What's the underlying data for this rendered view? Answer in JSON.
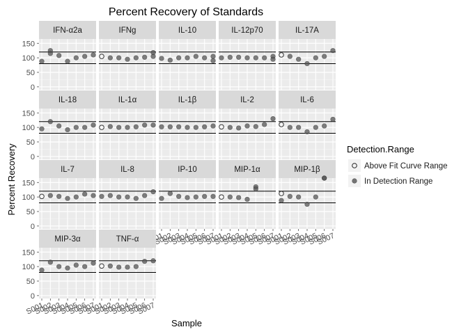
{
  "chart_data": {
    "type": "scatter",
    "title": "Percent Recovery of Standards",
    "xlabel": "Sample",
    "ylabel": "Percent Recovery",
    "ylim": [
      -10,
      165
    ],
    "yticks": [
      0,
      50,
      100,
      150
    ],
    "hlines": [
      80,
      120
    ],
    "grid": true,
    "x_categories": [
      "S001",
      "S002",
      "S003",
      "S004",
      "S005",
      "S006",
      "S007"
    ],
    "facet_columns": 5,
    "legend": {
      "title": "Detection.Range",
      "position": "right",
      "entries": [
        {
          "label": "Above Fit Curve Range",
          "style": "open"
        },
        {
          "label": "In Detection Range",
          "style": "filled"
        }
      ]
    },
    "colors": {
      "filled": "#555555",
      "open_stroke": "#222222",
      "strip": "#d9d9d9",
      "panel": "#ebebeb",
      "hline": "#000000"
    },
    "panels": [
      {
        "name": "IFN-α2a",
        "points": [
          [
            1,
            88,
            0
          ],
          [
            2,
            125,
            0
          ],
          [
            2,
            115,
            0
          ],
          [
            3,
            108,
            0
          ],
          [
            4,
            88,
            0
          ],
          [
            5,
            100,
            0
          ],
          [
            6,
            105,
            0
          ],
          [
            7,
            110,
            0
          ]
        ]
      },
      {
        "name": "IFNg",
        "points": [
          [
            1,
            105,
            1
          ],
          [
            2,
            100,
            0
          ],
          [
            3,
            100,
            0
          ],
          [
            4,
            95,
            0
          ],
          [
            5,
            100,
            0
          ],
          [
            6,
            102,
            0
          ],
          [
            7,
            118,
            0
          ],
          [
            7,
            105,
            0
          ]
        ]
      },
      {
        "name": "IL-10",
        "points": [
          [
            1,
            98,
            0
          ],
          [
            2,
            92,
            0
          ],
          [
            3,
            100,
            0
          ],
          [
            4,
            100,
            0
          ],
          [
            5,
            105,
            0
          ],
          [
            6,
            100,
            0
          ],
          [
            7,
            105,
            0
          ],
          [
            7,
            90,
            0
          ]
        ]
      },
      {
        "name": "IL-12p70",
        "points": [
          [
            1,
            100,
            0
          ],
          [
            2,
            102,
            0
          ],
          [
            3,
            102,
            0
          ],
          [
            4,
            100,
            0
          ],
          [
            5,
            100,
            0
          ],
          [
            6,
            100,
            0
          ],
          [
            7,
            105,
            0
          ],
          [
            7,
            95,
            0
          ]
        ]
      },
      {
        "name": "IL-17A",
        "points": [
          [
            1,
            110,
            1
          ],
          [
            2,
            105,
            0
          ],
          [
            3,
            95,
            0
          ],
          [
            4,
            80,
            0
          ],
          [
            5,
            100,
            0
          ],
          [
            6,
            105,
            0
          ],
          [
            7,
            125,
            0
          ]
        ]
      },
      {
        "name": "IL-18",
        "points": [
          [
            1,
            95,
            0
          ],
          [
            2,
            120,
            0
          ],
          [
            3,
            105,
            0
          ],
          [
            4,
            92,
            0
          ],
          [
            5,
            100,
            0
          ],
          [
            6,
            100,
            0
          ],
          [
            7,
            108,
            0
          ]
        ]
      },
      {
        "name": "IL-1α",
        "points": [
          [
            1,
            100,
            1
          ],
          [
            2,
            103,
            0
          ],
          [
            3,
            100,
            0
          ],
          [
            4,
            100,
            0
          ],
          [
            5,
            102,
            0
          ],
          [
            6,
            108,
            0
          ],
          [
            7,
            108,
            0
          ]
        ]
      },
      {
        "name": "IL-1β",
        "points": [
          [
            1,
            102,
            0
          ],
          [
            2,
            102,
            0
          ],
          [
            3,
            102,
            0
          ],
          [
            4,
            100,
            0
          ],
          [
            5,
            100,
            0
          ],
          [
            6,
            102,
            0
          ],
          [
            7,
            105,
            0
          ]
        ]
      },
      {
        "name": "IL-2",
        "points": [
          [
            1,
            102,
            1
          ],
          [
            2,
            100,
            0
          ],
          [
            3,
            98,
            0
          ],
          [
            4,
            105,
            0
          ],
          [
            5,
            103,
            0
          ],
          [
            6,
            110,
            0
          ],
          [
            7,
            130,
            0
          ]
        ]
      },
      {
        "name": "IL-6",
        "points": [
          [
            1,
            110,
            1
          ],
          [
            2,
            100,
            0
          ],
          [
            3,
            100,
            0
          ],
          [
            4,
            85,
            0
          ],
          [
            5,
            100,
            0
          ],
          [
            6,
            105,
            0
          ],
          [
            7,
            128,
            0
          ]
        ]
      },
      {
        "name": "IL-7",
        "points": [
          [
            1,
            102,
            1
          ],
          [
            2,
            105,
            0
          ],
          [
            3,
            102,
            0
          ],
          [
            4,
            95,
            0
          ],
          [
            5,
            100,
            0
          ],
          [
            6,
            110,
            0
          ],
          [
            7,
            105,
            0
          ]
        ]
      },
      {
        "name": "IL-8",
        "points": [
          [
            1,
            102,
            0
          ],
          [
            2,
            105,
            0
          ],
          [
            3,
            100,
            0
          ],
          [
            4,
            100,
            0
          ],
          [
            5,
            95,
            0
          ],
          [
            6,
            105,
            0
          ],
          [
            7,
            118,
            0
          ]
        ]
      },
      {
        "name": "IP-10",
        "points": [
          [
            1,
            95,
            0
          ],
          [
            2,
            112,
            0
          ],
          [
            3,
            102,
            0
          ],
          [
            4,
            98,
            0
          ],
          [
            5,
            100,
            0
          ],
          [
            6,
            102,
            0
          ],
          [
            7,
            102,
            0
          ]
        ]
      },
      {
        "name": "MIP-1α",
        "points": [
          [
            1,
            100,
            1
          ],
          [
            2,
            100,
            0
          ],
          [
            3,
            98,
            0
          ],
          [
            4,
            92,
            0
          ],
          [
            5,
            135,
            0
          ],
          [
            5,
            128,
            0
          ]
        ]
      },
      {
        "name": "MIP-1β",
        "points": [
          [
            1,
            112,
            1
          ],
          [
            1,
            88,
            0
          ],
          [
            2,
            102,
            0
          ],
          [
            3,
            100,
            0
          ],
          [
            4,
            75,
            0
          ],
          [
            5,
            100,
            0
          ],
          [
            6,
            175,
            0
          ],
          [
            6,
            170,
            0
          ]
        ]
      },
      {
        "name": "MIP-3α",
        "points": [
          [
            1,
            88,
            0
          ],
          [
            2,
            115,
            0
          ],
          [
            3,
            100,
            0
          ],
          [
            4,
            95,
            0
          ],
          [
            5,
            105,
            0
          ],
          [
            6,
            100,
            0
          ],
          [
            7,
            112,
            0
          ]
        ]
      },
      {
        "name": "TNF-α",
        "points": [
          [
            1,
            102,
            1
          ],
          [
            2,
            102,
            0
          ],
          [
            3,
            98,
            0
          ],
          [
            4,
            98,
            0
          ],
          [
            5,
            100,
            0
          ],
          [
            6,
            118,
            0
          ],
          [
            7,
            120,
            0
          ]
        ]
      }
    ]
  }
}
